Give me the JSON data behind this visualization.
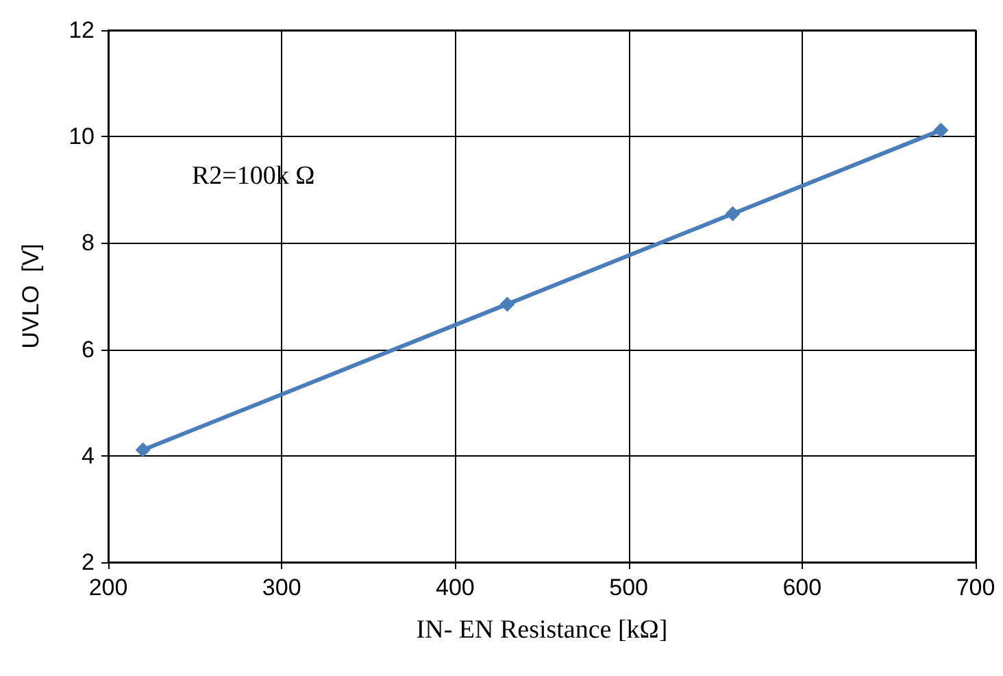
{
  "chart_data": {
    "type": "line",
    "xlabel": "IN- EN Resistance [kΩ]",
    "ylabel": "UVLO  [V]",
    "x": [
      220,
      430,
      560,
      680
    ],
    "series": [
      {
        "color": "#4a7ebb",
        "values": [
          4.11,
          6.85,
          8.55,
          10.12
        ]
      }
    ],
    "xlim": [
      200,
      700
    ],
    "xticks": [
      200,
      300,
      400,
      500,
      600,
      700
    ],
    "ylim": [
      2,
      12
    ],
    "yticks": [
      2,
      4,
      6,
      8,
      10,
      12
    ],
    "grid": true,
    "marker": "diamond",
    "line_style": "solid",
    "annotations": [
      "R2=100k Ω"
    ]
  }
}
